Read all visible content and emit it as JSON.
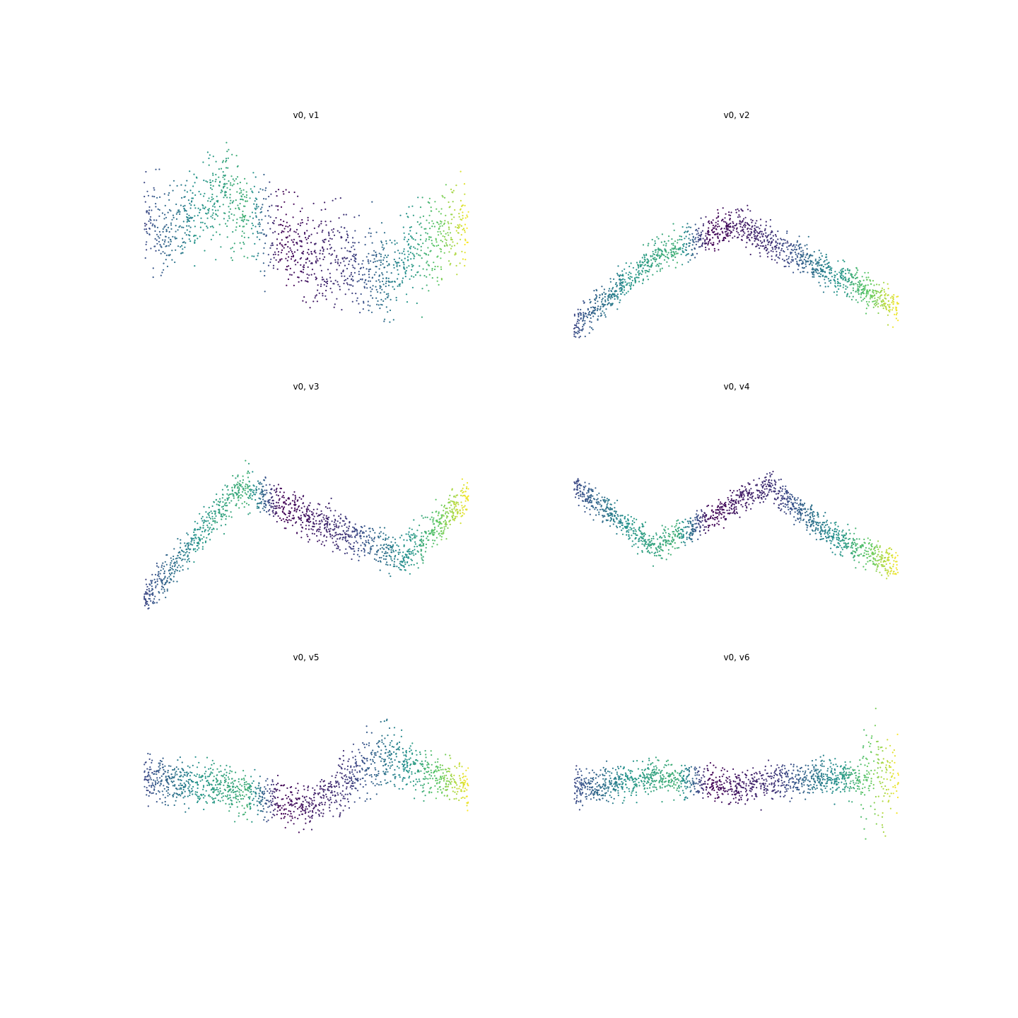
{
  "figure": {
    "background": "#ffffff",
    "colormap": "viridis",
    "colormap_stops": [
      "#440154",
      "#3b528b",
      "#21918c",
      "#5ec962",
      "#fde725"
    ],
    "axes_visible": false
  },
  "chart_data": [
    {
      "type": "scatter",
      "title": "v0, v1",
      "xlabel": "",
      "ylabel": "",
      "xlim": [
        0,
        1
      ],
      "ylim": [
        0,
        1
      ],
      "grid": false,
      "color_by": "position along the manifold (viridis)",
      "pattern": "broad horizontal band, purple centre, yellow right edge, blue left edge",
      "samples": [
        {
          "x": 0.05,
          "y": 0.5,
          "c": 0.2
        },
        {
          "x": 0.25,
          "y": 0.7,
          "c": 0.6
        },
        {
          "x": 0.5,
          "y": 0.4,
          "c": 0.0
        },
        {
          "x": 0.75,
          "y": 0.3,
          "c": 0.5
        },
        {
          "x": 0.95,
          "y": 0.55,
          "c": 0.95
        }
      ]
    },
    {
      "type": "scatter",
      "title": "v0, v2",
      "xlabel": "",
      "ylabel": "",
      "xlim": [
        0,
        1
      ],
      "ylim": [
        0,
        1
      ],
      "grid": false,
      "color_by": "position along the manifold (viridis)",
      "pattern": "rises to a peak near centre then falls to the right",
      "samples": [
        {
          "x": 0.0,
          "y": 0.05,
          "c": 0.2
        },
        {
          "x": 0.25,
          "y": 0.4,
          "c": 0.6
        },
        {
          "x": 0.5,
          "y": 0.55,
          "c": 0.0
        },
        {
          "x": 0.75,
          "y": 0.35,
          "c": 0.5
        },
        {
          "x": 1.0,
          "y": 0.15,
          "c": 0.95
        }
      ]
    },
    {
      "type": "scatter",
      "title": "v0, v3",
      "xlabel": "",
      "ylabel": "",
      "xlim": [
        0,
        1
      ],
      "ylim": [
        0,
        1
      ],
      "grid": false,
      "color_by": "position along the manifold (viridis)",
      "pattern": "arch peaking around x≈0.35, descending to the right",
      "samples": [
        {
          "x": 0.0,
          "y": 0.05,
          "c": 0.2
        },
        {
          "x": 0.3,
          "y": 0.6,
          "c": 0.6
        },
        {
          "x": 0.5,
          "y": 0.45,
          "c": 0.0
        },
        {
          "x": 0.8,
          "y": 0.25,
          "c": 0.5
        },
        {
          "x": 1.0,
          "y": 0.55,
          "c": 0.95
        }
      ]
    },
    {
      "type": "scatter",
      "title": "v0, v4",
      "xlabel": "",
      "ylabel": "",
      "xlim": [
        0,
        1
      ],
      "ylim": [
        0,
        1
      ],
      "grid": false,
      "color_by": "position along the manifold (viridis)",
      "pattern": "descends to a trough near x≈0.25, rises to a peak at x≈0.6, falls again",
      "samples": [
        {
          "x": 0.0,
          "y": 0.6,
          "c": 0.2
        },
        {
          "x": 0.25,
          "y": 0.3,
          "c": 0.6
        },
        {
          "x": 0.6,
          "y": 0.6,
          "c": 0.0
        },
        {
          "x": 0.8,
          "y": 0.35,
          "c": 0.5
        },
        {
          "x": 1.0,
          "y": 0.2,
          "c": 0.95
        }
      ]
    },
    {
      "type": "scatter",
      "title": "v0, v5",
      "xlabel": "",
      "ylabel": "",
      "xlim": [
        0,
        1
      ],
      "ylim": [
        0,
        1
      ],
      "grid": false,
      "color_by": "position along the manifold (viridis)",
      "pattern": "wavy band dipping at x≈0.5, spreading upward near x≈0.75",
      "samples": [
        {
          "x": 0.0,
          "y": 0.5,
          "c": 0.2
        },
        {
          "x": 0.25,
          "y": 0.45,
          "c": 0.6
        },
        {
          "x": 0.5,
          "y": 0.35,
          "c": 0.0
        },
        {
          "x": 0.75,
          "y": 0.6,
          "c": 0.5
        },
        {
          "x": 1.0,
          "y": 0.45,
          "c": 0.95
        }
      ]
    },
    {
      "type": "scatter",
      "title": "v0, v6",
      "xlabel": "",
      "ylabel": "",
      "xlim": [
        0,
        1
      ],
      "ylim": [
        0,
        1
      ],
      "grid": false,
      "color_by": "position along the manifold (viridis)",
      "pattern": "flat horizontal band with wide vertical spread at the right edge",
      "samples": [
        {
          "x": 0.0,
          "y": 0.45,
          "c": 0.2
        },
        {
          "x": 0.25,
          "y": 0.5,
          "c": 0.6
        },
        {
          "x": 0.5,
          "y": 0.45,
          "c": 0.0
        },
        {
          "x": 0.75,
          "y": 0.5,
          "c": 0.5
        },
        {
          "x": 1.0,
          "y": 0.5,
          "c": 0.95
        }
      ]
    }
  ]
}
